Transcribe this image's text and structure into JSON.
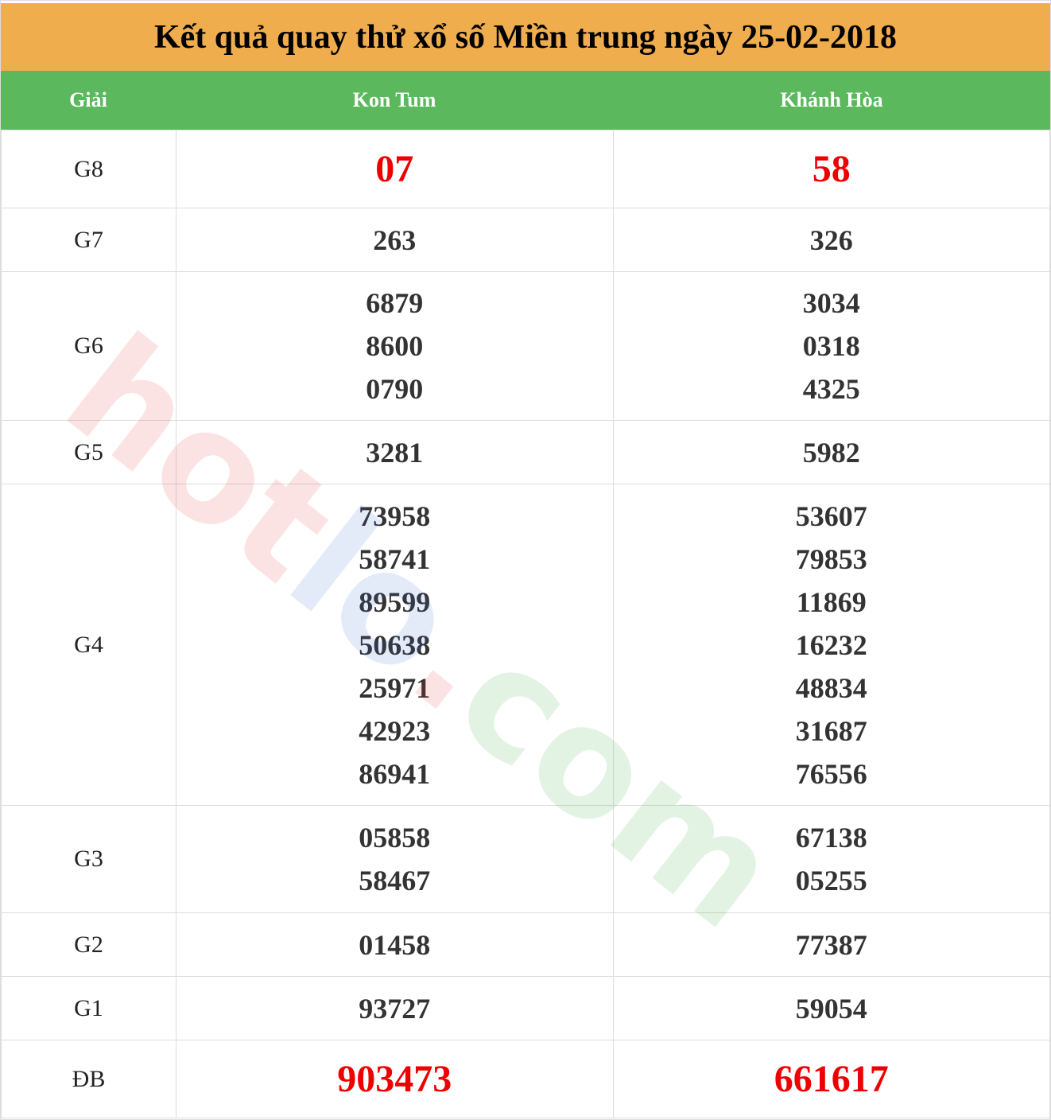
{
  "title": "Kết quả quay thử xổ số Miền trung ngày 25-02-2018",
  "headers": [
    "Giải",
    "Kon Tum",
    "Khánh Hòa"
  ],
  "watermark": "hotlo.com",
  "colors": {
    "title_bg": "#f0ad4e",
    "header_bg": "#5cb85c",
    "highlight": "#e00000"
  },
  "rows": [
    {
      "prize": "G8",
      "kon_tum": [
        "07"
      ],
      "khanh_hoa": [
        "58"
      ],
      "highlight": true
    },
    {
      "prize": "G7",
      "kon_tum": [
        "263"
      ],
      "khanh_hoa": [
        "326"
      ]
    },
    {
      "prize": "G6",
      "kon_tum": [
        "6879",
        "8600",
        "0790"
      ],
      "khanh_hoa": [
        "3034",
        "0318",
        "4325"
      ]
    },
    {
      "prize": "G5",
      "kon_tum": [
        "3281"
      ],
      "khanh_hoa": [
        "5982"
      ]
    },
    {
      "prize": "G4",
      "kon_tum": [
        "73958",
        "58741",
        "89599",
        "50638",
        "25971",
        "42923",
        "86941"
      ],
      "khanh_hoa": [
        "53607",
        "79853",
        "11869",
        "16232",
        "48834",
        "31687",
        "76556"
      ]
    },
    {
      "prize": "G3",
      "kon_tum": [
        "05858",
        "58467"
      ],
      "khanh_hoa": [
        "67138",
        "05255"
      ]
    },
    {
      "prize": "G2",
      "kon_tum": [
        "01458"
      ],
      "khanh_hoa": [
        "77387"
      ]
    },
    {
      "prize": "G1",
      "kon_tum": [
        "93727"
      ],
      "khanh_hoa": [
        "59054"
      ]
    },
    {
      "prize": "ĐB",
      "kon_tum": [
        "903473"
      ],
      "khanh_hoa": [
        "661617"
      ],
      "highlight": true
    }
  ]
}
